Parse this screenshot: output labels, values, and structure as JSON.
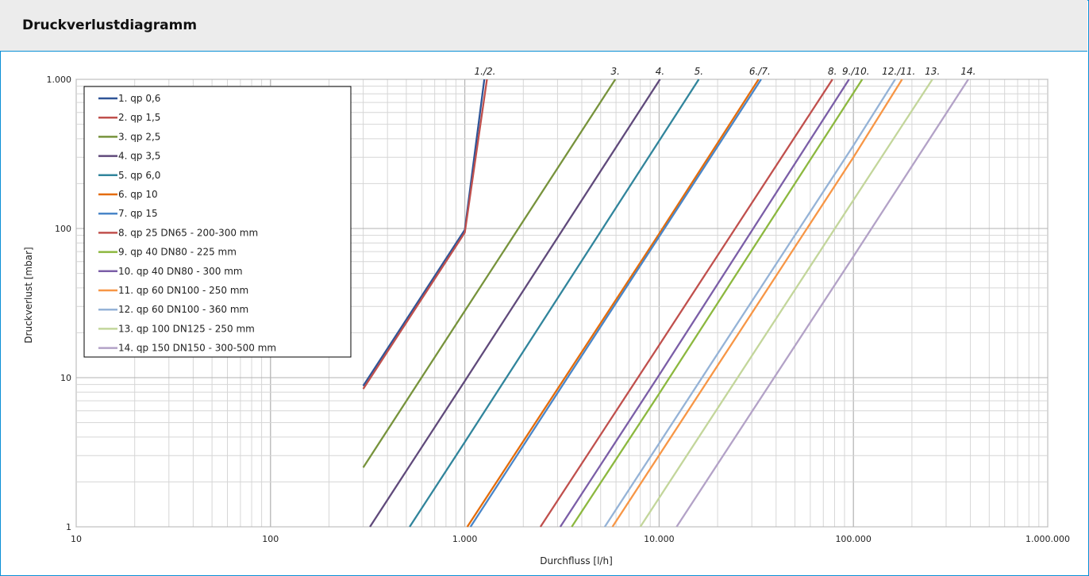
{
  "title": "Druckverlustdiagramm",
  "chart_data": {
    "type": "line",
    "xlabel": "Durchfluss",
    "xunit": "[l/h]",
    "ylabel": "Druckverlust",
    "yunit": "[mbar]",
    "xscale": "log",
    "yscale": "log",
    "xlim": [
      10,
      1000000
    ],
    "ylim": [
      1,
      1000
    ],
    "grid": true,
    "legend": "top-left",
    "x_ticks": [
      {
        "value": 10,
        "label": "10"
      },
      {
        "value": 100,
        "label": "100"
      },
      {
        "value": 1000,
        "label": "1.000"
      },
      {
        "value": 10000,
        "label": "10.000"
      },
      {
        "value": 100000,
        "label": "100.000"
      },
      {
        "value": 1000000,
        "label": "1.000.000"
      }
    ],
    "y_ticks": [
      {
        "value": 1,
        "label": "1"
      },
      {
        "value": 10,
        "label": "10"
      },
      {
        "value": 100,
        "label": "100"
      },
      {
        "value": 1000,
        "label": "1.000"
      }
    ],
    "series": [
      {
        "name": "1. qp 0,6",
        "color": "#2f5597",
        "points": [
          [
            300,
            8.8
          ],
          [
            1000,
            98
          ],
          [
            1260,
            1000
          ]
        ]
      },
      {
        "name": "2. qp 1,5",
        "color": "#c0504d",
        "points": [
          [
            300,
            8.4
          ],
          [
            1000,
            94
          ],
          [
            1300,
            1000
          ]
        ]
      },
      {
        "name": "3. qp 2,5",
        "color": "#77933c",
        "points": [
          [
            300,
            2.5
          ],
          [
            1000,
            28
          ],
          [
            5950,
            1000
          ]
        ]
      },
      {
        "name": "4. qp 3,5",
        "color": "#604a7b",
        "points": [
          [
            325,
            1
          ],
          [
            1000,
            9.5
          ],
          [
            10100,
            1000
          ]
        ]
      },
      {
        "name": "5. qp 6,0",
        "color": "#31859c",
        "points": [
          [
            520,
            1
          ],
          [
            1000,
            3.7
          ],
          [
            16000,
            1000
          ]
        ]
      },
      {
        "name": "6. qp 10",
        "color": "#e46c0a",
        "points": [
          [
            1030,
            1
          ],
          [
            10000,
            92
          ],
          [
            32500,
            1000
          ]
        ]
      },
      {
        "name": "7. qp 15",
        "color": "#4a86c8",
        "points": [
          [
            1070,
            1
          ],
          [
            10000,
            88
          ],
          [
            33500,
            1000
          ]
        ]
      },
      {
        "name": "8. qp 25 DN65 - 200-300 mm",
        "color": "#c0504d",
        "points": [
          [
            2450,
            1
          ],
          [
            10000,
            16.5
          ],
          [
            78000,
            1000
          ]
        ]
      },
      {
        "name": "9. qp 40 DN80 - 225 mm",
        "color": "#8cb83f",
        "points": [
          [
            3550,
            1
          ],
          [
            10000,
            7.8
          ],
          [
            111000,
            1000
          ]
        ]
      },
      {
        "name": "10. qp 40 DN80 - 300 mm",
        "color": "#7b5ea7",
        "points": [
          [
            3100,
            1
          ],
          [
            10000,
            10.4
          ],
          [
            95000,
            1000
          ]
        ]
      },
      {
        "name": "11. qp 60 DN100 - 250 mm",
        "color": "#f79646",
        "points": [
          [
            5750,
            1
          ],
          [
            100000,
            300
          ],
          [
            178000,
            1000
          ]
        ]
      },
      {
        "name": "12. qp 60 DN100 - 360 mm",
        "color": "#95b3d7",
        "points": [
          [
            5250,
            1
          ],
          [
            100000,
            360
          ],
          [
            164000,
            1000
          ]
        ]
      },
      {
        "name": "13. qp 100 DN125 - 250 mm",
        "color": "#c3d69b",
        "points": [
          [
            8000,
            1
          ],
          [
            100000,
            155
          ],
          [
            255000,
            1000
          ]
        ]
      },
      {
        "name": "14. qp 150 DN150 - 300-500 mm",
        "color": "#b3a2c7",
        "points": [
          [
            12300,
            1
          ],
          [
            100000,
            65
          ],
          [
            390000,
            1000
          ]
        ]
      }
    ],
    "annotations": [
      {
        "text": "1./2.",
        "x": 1270
      },
      {
        "text": "3.",
        "x": 5950
      },
      {
        "text": "4.",
        "x": 10100
      },
      {
        "text": "5.",
        "x": 16000
      },
      {
        "text": "6./7.",
        "x": 33000
      },
      {
        "text": "8.",
        "x": 78000
      },
      {
        "text": "9./10.",
        "x": 103000
      },
      {
        "text": "12./11.",
        "x": 171000
      },
      {
        "text": "13.",
        "x": 255000
      },
      {
        "text": "14.",
        "x": 390000
      }
    ]
  }
}
